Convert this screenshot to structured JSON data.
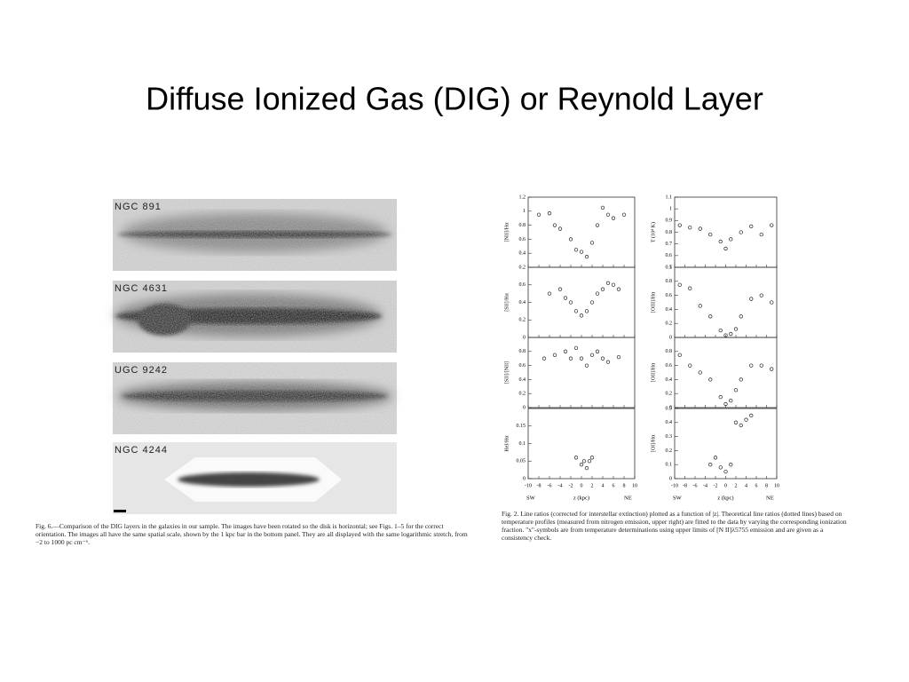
{
  "slide": {
    "title": "Diffuse Ionized Gas (DIG) or Reynold Layer",
    "galaxies": [
      "NGC 891",
      "NGC 4631",
      "UGC 9242",
      "NGC 4244"
    ],
    "left_caption": "Fig. 6.—Comparison of the DIG layers in the galaxies in our sample. The images have been rotated so the disk is horizontal; see Figs. 1–5 for the correct orientation. The images all have the same spatial scale, shown by the 1 kpc bar in the bottom panel. They are all displayed with the same logarithmic stretch, from −2 to 1000 pc cm⁻⁶.",
    "right_caption": "Fig. 2. Line ratios (corrected for interstellar extinction) plotted as a function of |z|. Theoretical line ratios (dotted lines) based on temperature profiles (measured from nitrogen emission, upper right) are fitted to the data by varying the corresponding ionization fraction. \"x\"-symbols are from temperature determinations using upper limits of [N II]λ5755 emission and are given as a consistency check.",
    "plot": {
      "xlim": [
        -10,
        10
      ],
      "xticks": [
        -10,
        -8,
        -6,
        -4,
        -2,
        0,
        2,
        4,
        6,
        8,
        10
      ],
      "xlabel": "z (kpc)",
      "left_end": "SW",
      "right_end": "NE",
      "panels": [
        {
          "ylabel": "[NII]/Hα",
          "ylim": [
            0.2,
            1.2
          ],
          "yticks": [
            0.2,
            0.4,
            0.6,
            0.8,
            1,
            1.2
          ],
          "points": [
            [
              -8,
              0.95
            ],
            [
              -6,
              0.97
            ],
            [
              -5,
              0.8
            ],
            [
              -4,
              0.75
            ],
            [
              -2,
              0.6
            ],
            [
              -1,
              0.45
            ],
            [
              0,
              0.42
            ],
            [
              1,
              0.35
            ],
            [
              2,
              0.55
            ],
            [
              3,
              0.8
            ],
            [
              4,
              1.05
            ],
            [
              5,
              0.95
            ],
            [
              6,
              0.9
            ],
            [
              8,
              0.95
            ]
          ]
        },
        {
          "ylabel": "[SII]/Hα",
          "ylim": [
            0,
            0.8
          ],
          "yticks": [
            0,
            0.2,
            0.4,
            0.6
          ],
          "points": [
            [
              -6,
              0.5
            ],
            [
              -4,
              0.55
            ],
            [
              -3,
              0.45
            ],
            [
              -2,
              0.4
            ],
            [
              -1,
              0.3
            ],
            [
              0,
              0.25
            ],
            [
              1,
              0.3
            ],
            [
              2,
              0.4
            ],
            [
              3,
              0.5
            ],
            [
              4,
              0.55
            ],
            [
              5,
              0.62
            ],
            [
              6,
              0.6
            ],
            [
              7,
              0.55
            ]
          ]
        },
        {
          "ylabel": "[SII]/[NII]",
          "ylim": [
            0,
            1
          ],
          "yticks": [
            0,
            0.2,
            0.4,
            0.6,
            0.8
          ],
          "points": [
            [
              -7,
              0.7
            ],
            [
              -5,
              0.75
            ],
            [
              -3,
              0.8
            ],
            [
              -2,
              0.7
            ],
            [
              -1,
              0.85
            ],
            [
              0,
              0.7
            ],
            [
              1,
              0.6
            ],
            [
              2,
              0.75
            ],
            [
              3,
              0.8
            ],
            [
              4,
              0.7
            ],
            [
              5,
              0.65
            ],
            [
              7,
              0.72
            ]
          ]
        },
        {
          "ylabel": "HeI/Hα",
          "ylim": [
            0,
            0.2
          ],
          "yticks": [
            0,
            0.05,
            0.1,
            0.15
          ],
          "points": [
            [
              -1,
              0.06
            ],
            [
              0,
              0.04
            ],
            [
              0.5,
              0.05
            ],
            [
              1,
              0.03
            ],
            [
              1.5,
              0.05
            ],
            [
              2,
              0.06
            ]
          ]
        },
        {
          "ylabel": "T (10⁴ K)",
          "ylim": [
            0.5,
            1.1
          ],
          "yticks": [
            0.5,
            0.6,
            0.7,
            0.8,
            0.9,
            1,
            1.1
          ],
          "points": [
            [
              -9,
              0.86
            ],
            [
              -7,
              0.84
            ],
            [
              -5,
              0.83
            ],
            [
              -3,
              0.78
            ],
            [
              -1,
              0.72
            ],
            [
              0,
              0.66
            ],
            [
              1,
              0.74
            ],
            [
              3,
              0.8
            ],
            [
              5,
              0.85
            ],
            [
              7,
              0.78
            ],
            [
              9,
              0.86
            ]
          ]
        },
        {
          "ylabel": "[OIII]/Hα",
          "ylim": [
            0,
            1
          ],
          "yticks": [
            0,
            0.2,
            0.4,
            0.6,
            0.8,
            1
          ],
          "points": [
            [
              -9,
              0.75
            ],
            [
              -7,
              0.7
            ],
            [
              -5,
              0.45
            ],
            [
              -3,
              0.3
            ],
            [
              -1,
              0.1
            ],
            [
              0,
              0.03
            ],
            [
              1,
              0.05
            ],
            [
              2,
              0.12
            ],
            [
              3,
              0.3
            ],
            [
              5,
              0.55
            ],
            [
              7,
              0.6
            ],
            [
              9,
              0.5
            ]
          ]
        },
        {
          "ylabel": "[OII]/Hα",
          "ylim": [
            0,
            1
          ],
          "yticks": [
            0,
            0.2,
            0.4,
            0.6,
            0.8
          ],
          "points": [
            [
              -9,
              0.75
            ],
            [
              -7,
              0.6
            ],
            [
              -5,
              0.5
            ],
            [
              -3,
              0.4
            ],
            [
              -1,
              0.15
            ],
            [
              0,
              0.05
            ],
            [
              1,
              0.1
            ],
            [
              2,
              0.25
            ],
            [
              3,
              0.4
            ],
            [
              5,
              0.6
            ],
            [
              7,
              0.6
            ],
            [
              9,
              0.55
            ]
          ]
        },
        {
          "ylabel": "[OI]/Hα",
          "ylim": [
            0,
            0.5
          ],
          "yticks": [
            0,
            0.1,
            0.2,
            0.3,
            0.4,
            0.5
          ],
          "points": [
            [
              -3,
              0.1
            ],
            [
              -2,
              0.15
            ],
            [
              -1,
              0.08
            ],
            [
              0,
              0.05
            ],
            [
              1,
              0.1
            ],
            [
              2,
              0.4
            ],
            [
              3,
              0.38
            ],
            [
              4,
              0.42
            ],
            [
              5,
              0.45
            ]
          ]
        }
      ]
    }
  }
}
